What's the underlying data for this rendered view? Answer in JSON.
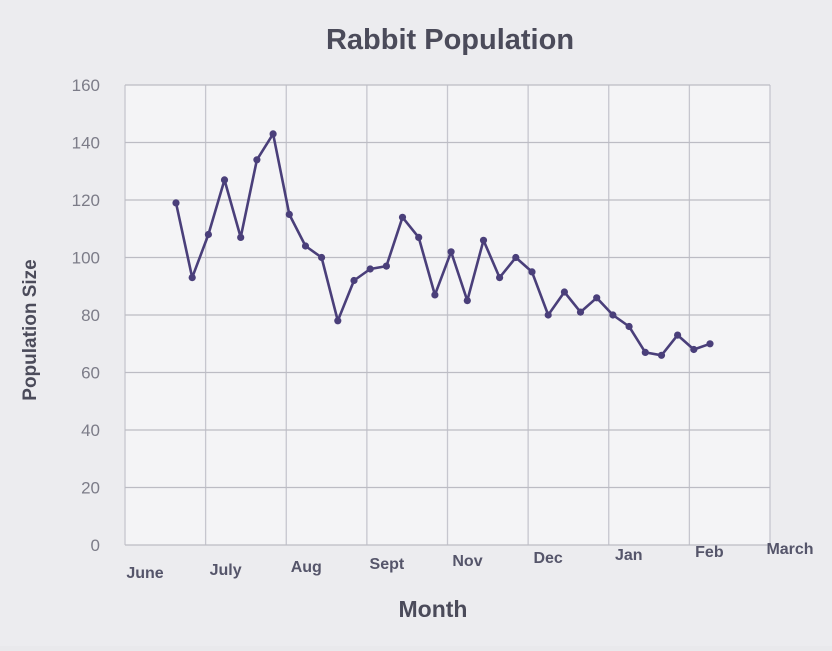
{
  "chart_data": {
    "type": "line",
    "title": "Rabbit Population",
    "xlabel": "Month",
    "ylabel": "Population Size",
    "ylim": [
      0,
      160
    ],
    "yticks": [
      0,
      20,
      40,
      60,
      80,
      100,
      120,
      140,
      160
    ],
    "xticks": [
      "June",
      "July",
      "Aug",
      "Sept",
      "Nov",
      "Dec",
      "Jan",
      "Feb",
      "March"
    ],
    "grid": true,
    "line_color": "#4a3f7a",
    "series": [
      {
        "values": [
          119,
          93,
          108,
          127,
          107,
          134,
          143,
          115,
          104,
          100,
          78,
          92,
          96,
          97,
          114,
          107,
          87,
          102,
          85,
          106,
          93,
          100,
          95,
          80,
          88,
          81,
          86,
          80,
          76,
          67,
          66,
          73,
          68,
          70
        ]
      }
    ]
  }
}
